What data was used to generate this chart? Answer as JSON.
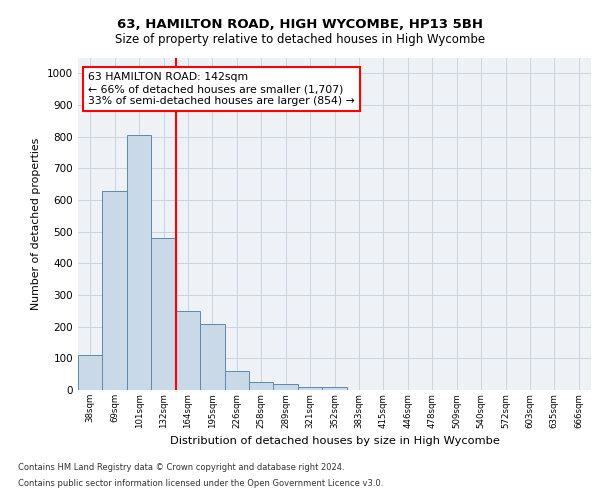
{
  "title1": "63, HAMILTON ROAD, HIGH WYCOMBE, HP13 5BH",
  "title2": "Size of property relative to detached houses in High Wycombe",
  "xlabel": "Distribution of detached houses by size in High Wycombe",
  "ylabel": "Number of detached properties",
  "bar_labels": [
    "38sqm",
    "69sqm",
    "101sqm",
    "132sqm",
    "164sqm",
    "195sqm",
    "226sqm",
    "258sqm",
    "289sqm",
    "321sqm",
    "352sqm",
    "383sqm",
    "415sqm",
    "446sqm",
    "478sqm",
    "509sqm",
    "540sqm",
    "572sqm",
    "603sqm",
    "635sqm",
    "666sqm"
  ],
  "bar_values": [
    110,
    630,
    805,
    480,
    250,
    208,
    60,
    25,
    18,
    10,
    10,
    0,
    0,
    0,
    0,
    0,
    0,
    0,
    0,
    0,
    0
  ],
  "bar_color": "#c9d9e8",
  "bar_edge_color": "#5a8ab0",
  "vline_x": 3.5,
  "annotation_line1": "63 HAMILTON ROAD: 142sqm",
  "annotation_line2": "← 66% of detached houses are smaller (1,707)",
  "annotation_line3": "33% of semi-detached houses are larger (854) →",
  "annotation_box_color": "white",
  "annotation_box_edge_color": "red",
  "vline_color": "red",
  "ylim": [
    0,
    1050
  ],
  "yticks": [
    0,
    100,
    200,
    300,
    400,
    500,
    600,
    700,
    800,
    900,
    1000
  ],
  "footnote1": "Contains HM Land Registry data © Crown copyright and database right 2024.",
  "footnote2": "Contains public sector information licensed under the Open Government Licence v3.0.",
  "bg_color": "#eef2f7",
  "grid_color": "#c8d4e0"
}
